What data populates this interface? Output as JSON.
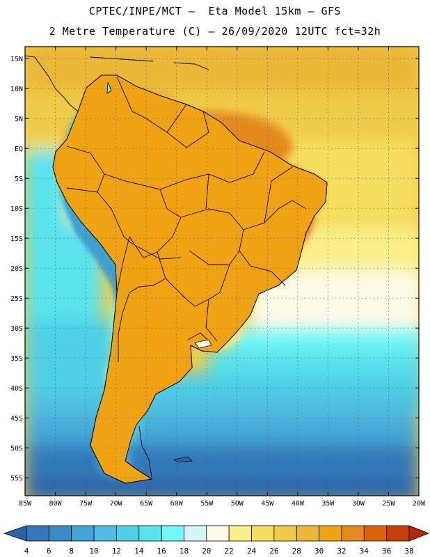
{
  "header": {
    "title_line1": "CPTEC/INPE/MCT –  Eta Model 15km – GFS",
    "title_line2": "2 Metre Temperature (C) – 26/09/2020 12UTC fct=32h"
  },
  "map": {
    "region": "South America",
    "variable": "2 Metre Temperature",
    "units": "C",
    "lon_range": [
      -85,
      -20
    ],
    "lat_range": [
      -58,
      17
    ],
    "lat_labels": [
      "15N",
      "10N",
      "5N",
      "EQ",
      "5S",
      "10S",
      "15S",
      "20S",
      "25S",
      "30S",
      "35S",
      "40S",
      "45S",
      "50S",
      "55S"
    ],
    "lat_values": [
      15,
      10,
      5,
      0,
      -5,
      -10,
      -15,
      -20,
      -25,
      -30,
      -35,
      -40,
      -45,
      -50,
      -55
    ],
    "lon_labels": [
      "85W",
      "80W",
      "75W",
      "70W",
      "65W",
      "60W",
      "55W",
      "50W",
      "45W",
      "40W",
      "35W",
      "30W",
      "25W",
      "20W"
    ],
    "lon_values": [
      -85,
      -80,
      -75,
      -70,
      -65,
      -60,
      -55,
      -50,
      -45,
      -40,
      -35,
      -30,
      -25,
      -20
    ]
  },
  "colorbar": {
    "labels": [
      "4",
      "6",
      "8",
      "10",
      "12",
      "14",
      "16",
      "18",
      "20",
      "22",
      "24",
      "26",
      "28",
      "30",
      "32",
      "34",
      "36",
      "38"
    ],
    "colors": [
      "#2b62a8",
      "#3378b8",
      "#3a8cc8",
      "#44a6d6",
      "#4fbcdf",
      "#4fd0e6",
      "#5ae4ee",
      "#72f8f8",
      "#d4f6fb",
      "#fffbe8",
      "#fbf08a",
      "#f5df5e",
      "#f0cb49",
      "#ebb838",
      "#f0a413",
      "#e48a1e",
      "#d8650d",
      "#c6400a",
      "#b02a05"
    ]
  }
}
